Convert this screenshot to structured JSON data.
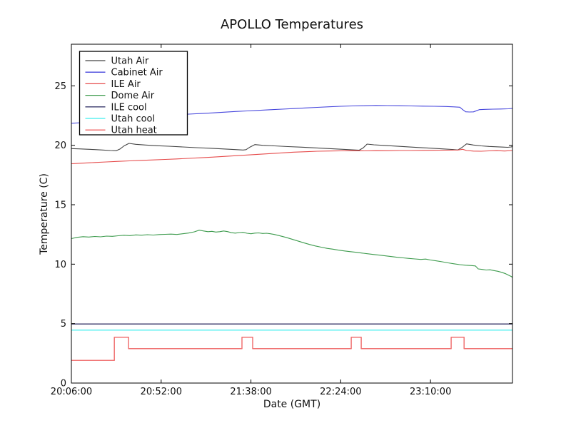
{
  "chart_data": {
    "type": "line",
    "title": "APOLLO Temperatures",
    "xlabel": "Date (GMT)",
    "ylabel": "Temperature (C)",
    "grid": false,
    "legend_position": "upper left",
    "background_color": "#ffffff",
    "axis_color": "#000000",
    "x_axis": {
      "unit": "minutes since 20:06:00 GMT",
      "min": 0,
      "max": 226,
      "ticks": [
        {
          "value": 0,
          "label": "20:06:00"
        },
        {
          "value": 46,
          "label": "20:52:00"
        },
        {
          "value": 92,
          "label": "21:38:00"
        },
        {
          "value": 138,
          "label": "22:24:00"
        },
        {
          "value": 184,
          "label": "23:10:00"
        }
      ]
    },
    "y_axis": {
      "min": 0,
      "max": 28.5,
      "ticks": [
        {
          "value": 0,
          "label": "0"
        },
        {
          "value": 5,
          "label": "5"
        },
        {
          "value": 10,
          "label": "10"
        },
        {
          "value": 15,
          "label": "15"
        },
        {
          "value": 20,
          "label": "20"
        },
        {
          "value": 25,
          "label": "25"
        }
      ]
    },
    "series": [
      {
        "name": "Utah Air",
        "color": "#444444",
        "width": 1.1,
        "points": [
          [
            0,
            19.72
          ],
          [
            4,
            19.7
          ],
          [
            8,
            19.67
          ],
          [
            12,
            19.64
          ],
          [
            16,
            19.6
          ],
          [
            20,
            19.56
          ],
          [
            23,
            19.54
          ],
          [
            25,
            19.7
          ],
          [
            27,
            19.95
          ],
          [
            29.5,
            20.16
          ],
          [
            33,
            20.08
          ],
          [
            38,
            20.02
          ],
          [
            44,
            19.96
          ],
          [
            50,
            19.92
          ],
          [
            57,
            19.86
          ],
          [
            64,
            19.8
          ],
          [
            71,
            19.75
          ],
          [
            78,
            19.69
          ],
          [
            84,
            19.64
          ],
          [
            88,
            19.6
          ],
          [
            89.5,
            19.63
          ],
          [
            91.5,
            19.85
          ],
          [
            94,
            20.06
          ],
          [
            98,
            20.0
          ],
          [
            104,
            19.95
          ],
          [
            111,
            19.89
          ],
          [
            118,
            19.84
          ],
          [
            125,
            19.78
          ],
          [
            132,
            19.72
          ],
          [
            139,
            19.66
          ],
          [
            145,
            19.61
          ],
          [
            147.5,
            19.59
          ],
          [
            149.5,
            19.78
          ],
          [
            151.5,
            20.1
          ],
          [
            155,
            20.04
          ],
          [
            160,
            19.99
          ],
          [
            166,
            19.93
          ],
          [
            172,
            19.87
          ],
          [
            178,
            19.81
          ],
          [
            184,
            19.76
          ],
          [
            190,
            19.7
          ],
          [
            195,
            19.65
          ],
          [
            198,
            19.61
          ],
          [
            200,
            19.8
          ],
          [
            202.5,
            20.12
          ],
          [
            206,
            20.02
          ],
          [
            210,
            19.95
          ],
          [
            214,
            19.9
          ],
          [
            218,
            19.87
          ],
          [
            221,
            19.85
          ],
          [
            223.5,
            19.83
          ],
          [
            225.5,
            19.86
          ],
          [
            226,
            19.97
          ]
        ]
      },
      {
        "name": "Cabinet Air",
        "color": "#4747dd",
        "width": 1.1,
        "points": [
          [
            0,
            21.85
          ],
          [
            5,
            21.9
          ],
          [
            10,
            21.97
          ],
          [
            15,
            22.03
          ],
          [
            20,
            22.1
          ],
          [
            25,
            22.17
          ],
          [
            30,
            22.24
          ],
          [
            35,
            22.3
          ],
          [
            40,
            22.37
          ],
          [
            45,
            22.44
          ],
          [
            50,
            22.5
          ],
          [
            55,
            22.56
          ],
          [
            60,
            22.62
          ],
          [
            66,
            22.67
          ],
          [
            72,
            22.72
          ],
          [
            78,
            22.78
          ],
          [
            84,
            22.84
          ],
          [
            90,
            22.89
          ],
          [
            96,
            22.94
          ],
          [
            102,
            22.99
          ],
          [
            108,
            23.04
          ],
          [
            114,
            23.09
          ],
          [
            120,
            23.14
          ],
          [
            126,
            23.19
          ],
          [
            132,
            23.24
          ],
          [
            138,
            23.28
          ],
          [
            144,
            23.31
          ],
          [
            150,
            23.33
          ],
          [
            156,
            23.35
          ],
          [
            162,
            23.34
          ],
          [
            168,
            23.33
          ],
          [
            174,
            23.31
          ],
          [
            180,
            23.29
          ],
          [
            186,
            23.28
          ],
          [
            192,
            23.26
          ],
          [
            196,
            23.23
          ],
          [
            199,
            23.2
          ],
          [
            200.5,
            23.0
          ],
          [
            202,
            22.82
          ],
          [
            204,
            22.8
          ],
          [
            206,
            22.81
          ],
          [
            207.5,
            22.9
          ],
          [
            209,
            23.0
          ],
          [
            212,
            23.02
          ],
          [
            216,
            23.04
          ],
          [
            220,
            23.05
          ],
          [
            224,
            23.07
          ],
          [
            226,
            23.1
          ]
        ]
      },
      {
        "name": "ILE Air",
        "color": "#e64c4c",
        "width": 1.1,
        "points": [
          [
            0,
            18.45
          ],
          [
            6,
            18.5
          ],
          [
            12,
            18.55
          ],
          [
            18,
            18.6
          ],
          [
            24,
            18.65
          ],
          [
            30,
            18.69
          ],
          [
            36,
            18.73
          ],
          [
            42,
            18.77
          ],
          [
            48,
            18.81
          ],
          [
            54,
            18.85
          ],
          [
            60,
            18.9
          ],
          [
            66,
            18.95
          ],
          [
            72,
            19.0
          ],
          [
            78,
            19.06
          ],
          [
            84,
            19.12
          ],
          [
            90,
            19.18
          ],
          [
            96,
            19.24
          ],
          [
            102,
            19.3
          ],
          [
            108,
            19.36
          ],
          [
            114,
            19.42
          ],
          [
            120,
            19.46
          ],
          [
            126,
            19.5
          ],
          [
            132,
            19.52
          ],
          [
            138,
            19.53
          ],
          [
            144,
            19.54
          ],
          [
            150,
            19.53
          ],
          [
            156,
            19.55
          ],
          [
            162,
            19.54
          ],
          [
            168,
            19.56
          ],
          [
            174,
            19.56
          ],
          [
            180,
            19.57
          ],
          [
            186,
            19.58
          ],
          [
            192,
            19.59
          ],
          [
            198,
            19.6
          ],
          [
            200.5,
            19.66
          ],
          [
            202.5,
            19.56
          ],
          [
            206,
            19.51
          ],
          [
            210,
            19.5
          ],
          [
            214,
            19.53
          ],
          [
            218,
            19.55
          ],
          [
            222,
            19.52
          ],
          [
            226,
            19.56
          ]
        ]
      },
      {
        "name": "Dome Air",
        "color": "#3d9b4d",
        "width": 1.1,
        "points": [
          [
            0,
            12.15
          ],
          [
            3,
            12.26
          ],
          [
            6,
            12.31
          ],
          [
            9,
            12.28
          ],
          [
            12,
            12.33
          ],
          [
            15,
            12.3
          ],
          [
            18,
            12.36
          ],
          [
            21,
            12.34
          ],
          [
            24,
            12.39
          ],
          [
            27,
            12.43
          ],
          [
            30,
            12.4
          ],
          [
            33,
            12.46
          ],
          [
            36,
            12.44
          ],
          [
            39,
            12.48
          ],
          [
            42,
            12.45
          ],
          [
            45,
            12.49
          ],
          [
            48,
            12.51
          ],
          [
            51,
            12.53
          ],
          [
            54,
            12.5
          ],
          [
            57,
            12.56
          ],
          [
            60,
            12.62
          ],
          [
            63,
            12.72
          ],
          [
            65.5,
            12.86
          ],
          [
            67.5,
            12.8
          ],
          [
            70,
            12.73
          ],
          [
            72,
            12.76
          ],
          [
            74,
            12.7
          ],
          [
            76,
            12.73
          ],
          [
            78,
            12.79
          ],
          [
            80,
            12.74
          ],
          [
            82,
            12.65
          ],
          [
            84,
            12.61
          ],
          [
            86,
            12.66
          ],
          [
            88,
            12.68
          ],
          [
            90,
            12.6
          ],
          [
            92,
            12.56
          ],
          [
            94,
            12.61
          ],
          [
            96,
            12.63
          ],
          [
            98,
            12.58
          ],
          [
            100,
            12.6
          ],
          [
            102,
            12.56
          ],
          [
            104,
            12.5
          ],
          [
            107,
            12.38
          ],
          [
            110,
            12.25
          ],
          [
            113,
            12.1
          ],
          [
            116,
            11.95
          ],
          [
            119,
            11.8
          ],
          [
            122,
            11.66
          ],
          [
            125,
            11.53
          ],
          [
            128,
            11.43
          ],
          [
            131,
            11.33
          ],
          [
            134,
            11.26
          ],
          [
            137,
            11.18
          ],
          [
            140,
            11.11
          ],
          [
            143,
            11.05
          ],
          [
            146,
            11.0
          ],
          [
            149,
            10.93
          ],
          [
            152,
            10.87
          ],
          [
            155,
            10.81
          ],
          [
            158,
            10.76
          ],
          [
            161,
            10.7
          ],
          [
            164,
            10.64
          ],
          [
            167,
            10.58
          ],
          [
            170,
            10.53
          ],
          [
            173,
            10.48
          ],
          [
            176,
            10.44
          ],
          [
            179,
            10.4
          ],
          [
            181.5,
            10.43
          ],
          [
            184,
            10.35
          ],
          [
            187,
            10.28
          ],
          [
            190,
            10.2
          ],
          [
            193,
            10.11
          ],
          [
            196,
            10.03
          ],
          [
            199,
            9.96
          ],
          [
            202,
            9.91
          ],
          [
            205,
            9.88
          ],
          [
            207,
            9.85
          ],
          [
            208.5,
            9.6
          ],
          [
            210.5,
            9.56
          ],
          [
            212.5,
            9.51
          ],
          [
            214.5,
            9.53
          ],
          [
            216.5,
            9.46
          ],
          [
            218.5,
            9.4
          ],
          [
            220.5,
            9.31
          ],
          [
            222.5,
            9.2
          ],
          [
            224,
            9.08
          ],
          [
            225.5,
            8.95
          ],
          [
            226,
            8.88
          ]
        ]
      },
      {
        "name": "ILE cool",
        "color": "#39396b",
        "width": 1.4,
        "points": [
          [
            0,
            4.97
          ],
          [
            226,
            4.97
          ]
        ]
      },
      {
        "name": "Utah cool",
        "color": "#5ff0f0",
        "width": 1.5,
        "points": [
          [
            0,
            4.45
          ],
          [
            226,
            4.45
          ]
        ]
      },
      {
        "name": "Utah heat",
        "color": "#f07272",
        "width": 1.5,
        "points": [
          [
            0,
            1.9
          ],
          [
            22,
            1.9
          ],
          [
            22,
            3.85
          ],
          [
            29.3,
            3.85
          ],
          [
            29.3,
            2.9
          ],
          [
            87.4,
            2.9
          ],
          [
            87.4,
            3.85
          ],
          [
            92.9,
            3.85
          ],
          [
            92.9,
            2.9
          ],
          [
            143.4,
            2.9
          ],
          [
            143.4,
            3.85
          ],
          [
            148.5,
            3.85
          ],
          [
            148.5,
            2.9
          ],
          [
            194.6,
            2.9
          ],
          [
            194.6,
            3.85
          ],
          [
            201.2,
            3.85
          ],
          [
            201.2,
            2.9
          ],
          [
            226,
            2.9
          ]
        ]
      }
    ],
    "legend": {
      "entries": [
        "Utah Air",
        "Cabinet Air",
        "ILE Air",
        "Dome Air",
        "ILE cool",
        "Utah cool",
        "Utah heat"
      ],
      "border_color": "#000000",
      "background_color": "#ffffff"
    }
  }
}
